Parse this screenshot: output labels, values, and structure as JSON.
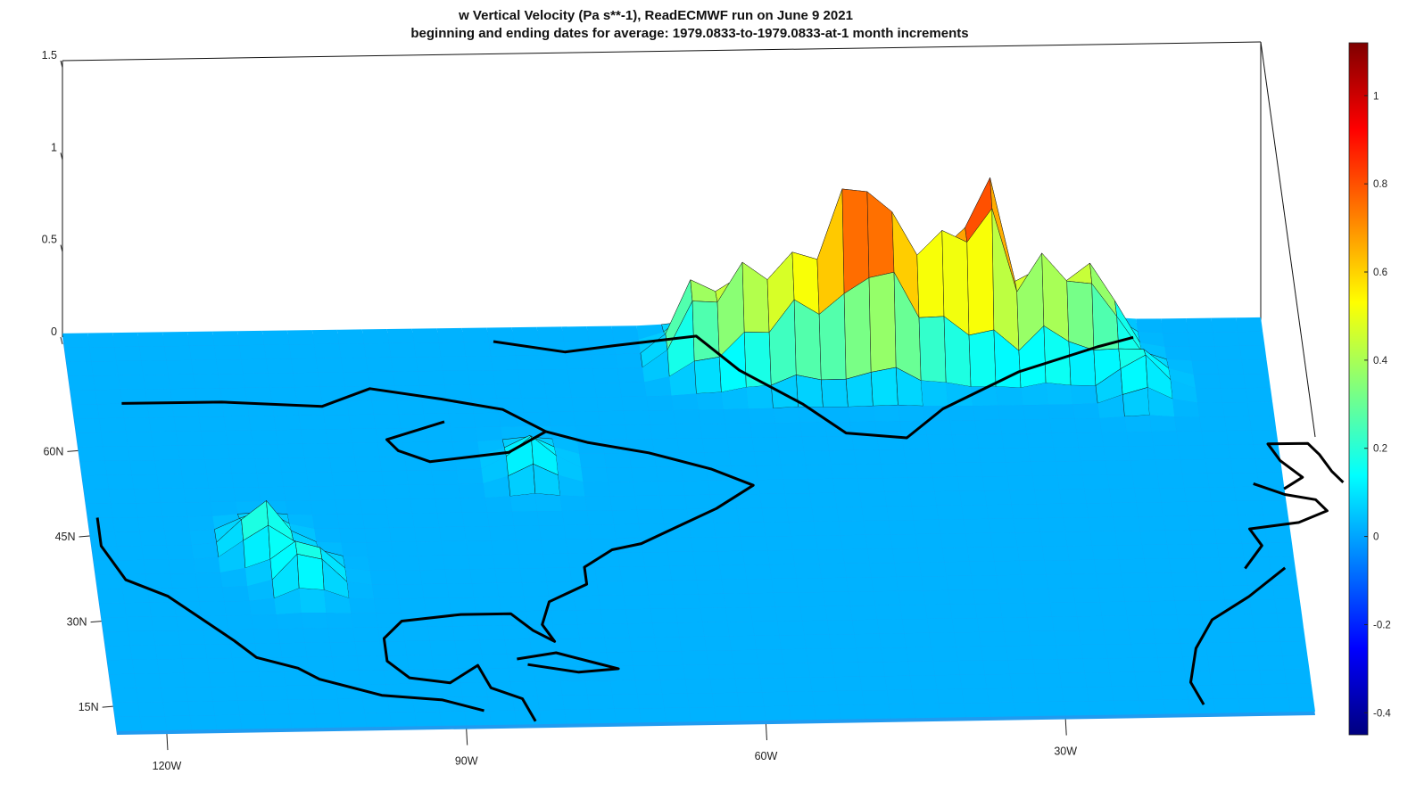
{
  "title": "w  Vertical Velocity (Pa s**-1), ReadECMWF run on June 9 2021",
  "subtitle": "beginning and ending dates for average:  1979.0833-to-1979.0833-at-1 month increments",
  "chart_data": {
    "type": "surface",
    "variable": "w  Vertical Velocity (Pa s**-1)",
    "x_ticks": [
      "120W",
      "90W",
      "60W",
      "30W"
    ],
    "y_ticks": [
      "15N",
      "30N",
      "45N",
      "60N"
    ],
    "z_ticks": [
      "0",
      "0.5",
      "1",
      "1.5"
    ],
    "zlim": [
      0,
      1.5
    ],
    "colorbar": {
      "ticks": [
        "1",
        "0.8",
        "0.6",
        "0.4",
        "0.2",
        "0",
        "-0.2",
        "-0.4"
      ],
      "range": [
        -0.45,
        1.12
      ],
      "colormap": "jet",
      "colors": [
        "#00007f",
        "#0000ff",
        "#007fff",
        "#00ffff",
        "#7fff7f",
        "#ffff00",
        "#ff7f00",
        "#ff0000",
        "#7f0000"
      ]
    },
    "peaks": [
      {
        "lon": -62,
        "lat": 74,
        "w": 0.45
      },
      {
        "lon": -57,
        "lat": 73,
        "w": 0.58
      },
      {
        "lon": -52,
        "lat": 72,
        "w": 0.62
      },
      {
        "lon": -47,
        "lat": 73,
        "w": 0.95
      },
      {
        "lon": -43,
        "lat": 72,
        "w": 0.8
      },
      {
        "lon": -38,
        "lat": 73,
        "w": 0.72
      },
      {
        "lon": -33,
        "lat": 74,
        "w": 1.05
      },
      {
        "lon": -27,
        "lat": 73,
        "w": 0.62
      },
      {
        "lon": -22,
        "lat": 74,
        "w": 0.5
      },
      {
        "lon": -18,
        "lat": 68,
        "w": 0.2
      },
      {
        "lon": -108,
        "lat": 42,
        "w": 0.25
      },
      {
        "lon": -104,
        "lat": 36,
        "w": 0.22
      },
      {
        "lon": -80,
        "lat": 55,
        "w": 0.18
      }
    ],
    "background_w": 0.02
  }
}
